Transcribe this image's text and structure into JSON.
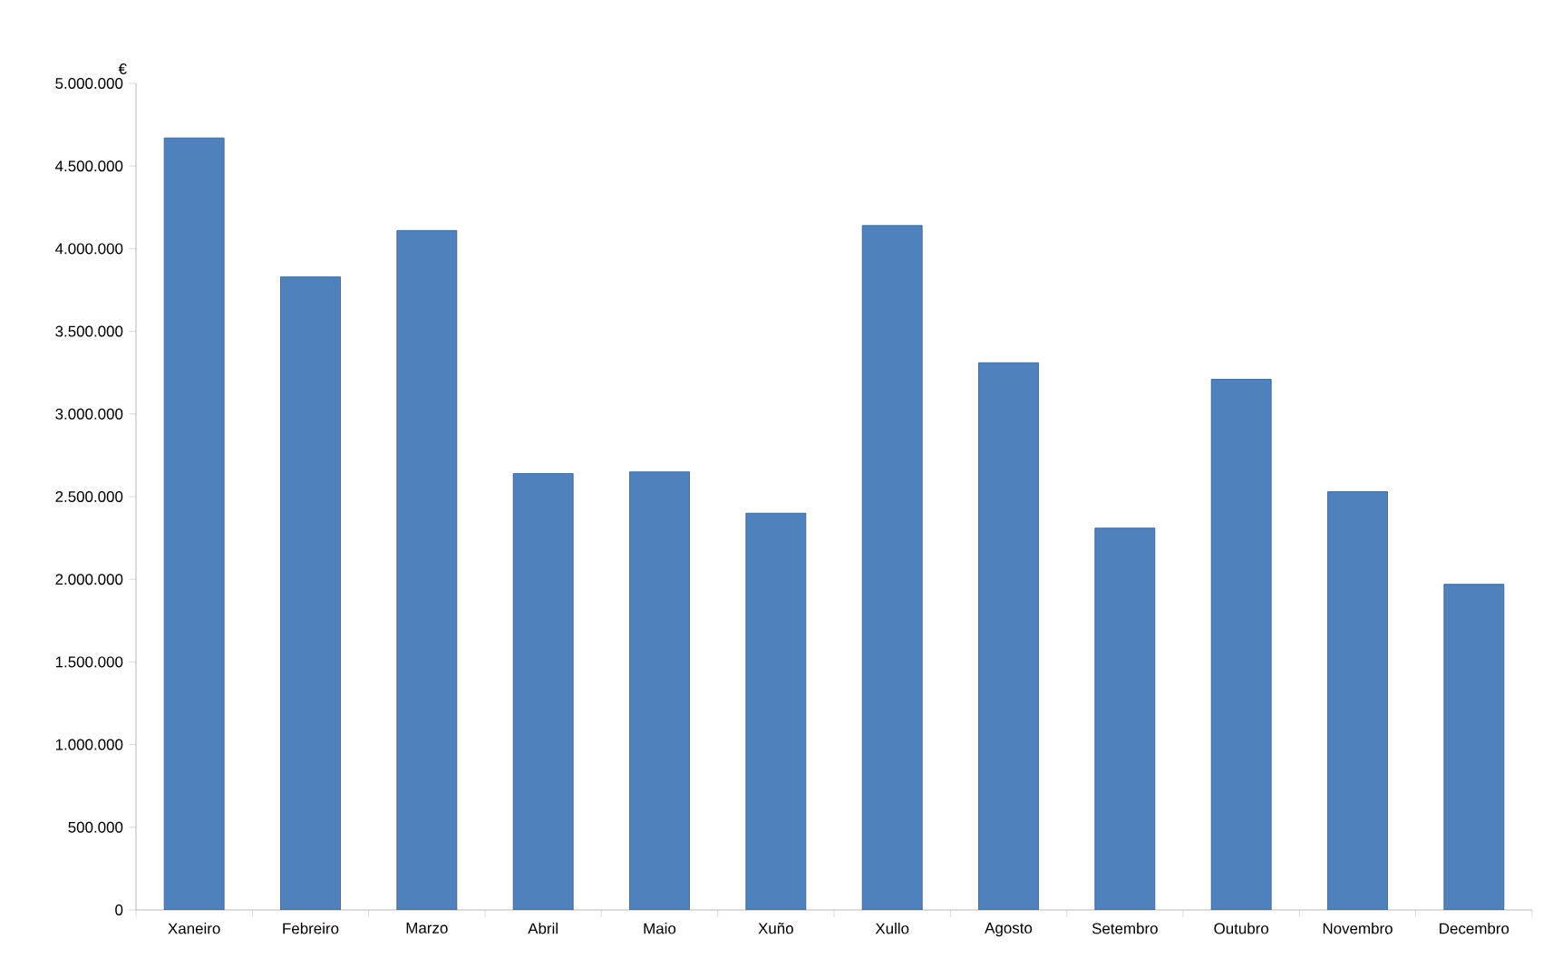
{
  "chart_data": {
    "type": "bar",
    "ylabel": "€",
    "categories": [
      "Xaneiro",
      "Febreiro",
      "Marzo",
      "Abril",
      "Maio",
      "Xuño",
      "Xullo",
      "Agosto",
      "Setembro",
      "Outubro",
      "Novembro",
      "Decembro"
    ],
    "values": [
      4670000,
      3830000,
      4110000,
      2640000,
      2650000,
      2400000,
      4140000,
      3310000,
      2310000,
      3210000,
      2530000,
      1970000
    ],
    "color": "#4f81bd",
    "ylim": [
      0,
      5000000
    ],
    "yticks": [
      0,
      {
        "value": 500000,
        "label": "500.000"
      },
      {
        "value": 1000000,
        "label": "1.000.000"
      },
      {
        "value": 1500000,
        "label": "1.500.000"
      },
      {
        "value": 2000000,
        "label": "2.000.000"
      },
      {
        "value": 2500000,
        "label": "2.500.000"
      },
      {
        "value": 3000000,
        "label": "3.000.000"
      },
      {
        "value": 3500000,
        "label": "3.500.000"
      },
      {
        "value": 4000000,
        "label": "4.000.000"
      },
      {
        "value": 4500000,
        "label": "4.500.000"
      },
      {
        "value": 5000000,
        "label": "5.000.000"
      }
    ]
  }
}
